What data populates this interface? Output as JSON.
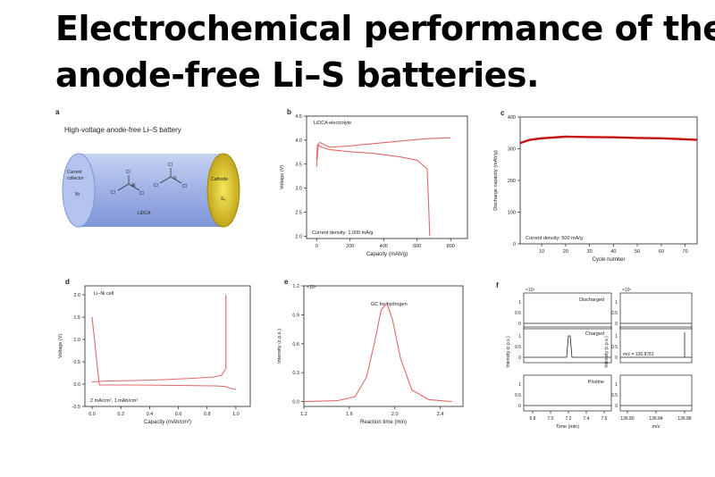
{
  "title": {
    "line1": "Electrochemical performance of the",
    "line2": "anode-free Li–S batteries."
  },
  "colors": {
    "curve": "#e06a6a",
    "capacity": "#c41010",
    "line": "#222222",
    "cylinder": "#9fb2e6",
    "cathode": "#d8c020"
  },
  "panel_a": {
    "letter": "a",
    "heading": "High-voltage anode-free Li–S battery",
    "collector_label": [
      "Current",
      "collector"
    ],
    "ni": "Ni",
    "cathode": "Cathode",
    "s8": "S₈",
    "salt": "LiDCA",
    "atoms": [
      "Cl",
      "Al",
      "Cl",
      "Cl",
      "Cl",
      "S",
      "Cl",
      "Cl"
    ]
  },
  "chart_data": [
    {
      "id": "b",
      "type": "line",
      "annotation": "LiDCA electrolyte",
      "note": "Current density: 1,000 mA/g",
      "xlabel": "Capacity (mAh/g)",
      "ylabel": "Voltage (V)",
      "xlim": [
        -60,
        900
      ],
      "ylim": [
        1.95,
        4.5
      ],
      "xticks": [
        0,
        200,
        400,
        600,
        800
      ],
      "yticks": [
        2.0,
        2.5,
        3.0,
        3.5,
        4.0,
        4.5
      ],
      "series": [
        {
          "x": [
            0,
            10,
            30,
            80,
            200,
            350,
            500,
            600,
            660,
            670,
            675
          ],
          "y": [
            3.45,
            3.9,
            3.85,
            3.8,
            3.76,
            3.72,
            3.65,
            3.58,
            3.4,
            2.5,
            2.0
          ]
        },
        {
          "x": [
            0,
            5,
            20,
            80,
            200,
            350,
            500,
            650,
            800
          ],
          "y": [
            3.6,
            3.9,
            3.95,
            3.85,
            3.88,
            3.93,
            3.98,
            4.03,
            4.05
          ]
        }
      ]
    },
    {
      "id": "c",
      "type": "line",
      "note": "Current density: 500 mA/g",
      "xlabel": "Cycle number",
      "ylabel": "Discharge capacity (mAh/g)",
      "xlim": [
        1,
        75
      ],
      "ylim": [
        0,
        400
      ],
      "xticks": [
        10,
        20,
        30,
        40,
        50,
        60,
        70
      ],
      "yticks": [
        0,
        100,
        200,
        300,
        400
      ],
      "series": [
        {
          "x": [
            1,
            5,
            10,
            20,
            30,
            40,
            50,
            60,
            70,
            75
          ],
          "y": [
            318,
            328,
            333,
            338,
            337,
            336,
            334,
            333,
            330,
            328
          ]
        }
      ]
    },
    {
      "id": "d",
      "type": "line",
      "annotation": "Li–Ni cell",
      "note": "2 mA/cm², 1 mAh/cm²",
      "xlabel": "Capacity (mAh/cm²)",
      "ylabel": "Voltage (V)",
      "xlim": [
        -0.05,
        1.1
      ],
      "ylim": [
        -0.5,
        2.2
      ],
      "xticks": [
        0.0,
        0.2,
        0.4,
        0.6,
        0.8,
        1.0
      ],
      "yticks": [
        -0.5,
        0.0,
        0.5,
        1.0,
        1.5,
        2.0
      ],
      "series": [
        {
          "x": [
            0,
            0.05,
            0.3,
            0.6,
            0.85,
            0.92,
            0.95,
            0.97,
            1.0
          ],
          "y": [
            1.5,
            -0.02,
            -0.02,
            -0.03,
            -0.04,
            -0.05,
            -0.08,
            -0.1,
            -0.12
          ]
        },
        {
          "x": [
            0,
            0.1,
            0.3,
            0.5,
            0.7,
            0.85,
            0.9,
            0.93,
            0.93
          ],
          "y": [
            0.05,
            0.07,
            0.08,
            0.1,
            0.13,
            0.16,
            0.2,
            0.35,
            2.0
          ]
        }
      ]
    },
    {
      "id": "e",
      "type": "line",
      "annotation": "GC for hydrogen",
      "xlabel": "Reaction time (min)",
      "ylabel": "Intensity (c.p.s.)",
      "xlim": [
        1.2,
        2.6
      ],
      "ylim": [
        -0.05,
        1.2
      ],
      "xticks": [
        1.2,
        1.6,
        2.0,
        2.4
      ],
      "yticks": [
        0.0,
        0.3,
        0.6,
        0.9,
        1.2
      ],
      "yscale_label": "×10⁴",
      "series": [
        {
          "x": [
            1.2,
            1.5,
            1.65,
            1.75,
            1.82,
            1.88,
            1.93,
            1.98,
            2.05,
            2.15,
            2.3,
            2.5
          ],
          "y": [
            0.0,
            0.01,
            0.05,
            0.25,
            0.6,
            0.95,
            1.02,
            0.85,
            0.45,
            0.12,
            0.02,
            0.0
          ]
        }
      ]
    },
    {
      "id": "f",
      "type": "line",
      "xlabel": "Time (min)",
      "ylabel": "Intensity (c.p.s.)",
      "xlabel_right": "m/z",
      "ylabel_right": "Intensity (c.p.s.)",
      "yscale_label": "×10⁷",
      "xticks": [
        6.8,
        7.0,
        7.2,
        7.4,
        7.6
      ],
      "xticks_right": [
        136.8,
        136.84,
        136.88
      ],
      "yticks": [
        0.0,
        0.5,
        1.0
      ],
      "subpanels": [
        "Discharged",
        "Charged",
        "Pristine"
      ],
      "peak_time": 7.22,
      "mz_label": "m/z = 136.8781"
    }
  ]
}
